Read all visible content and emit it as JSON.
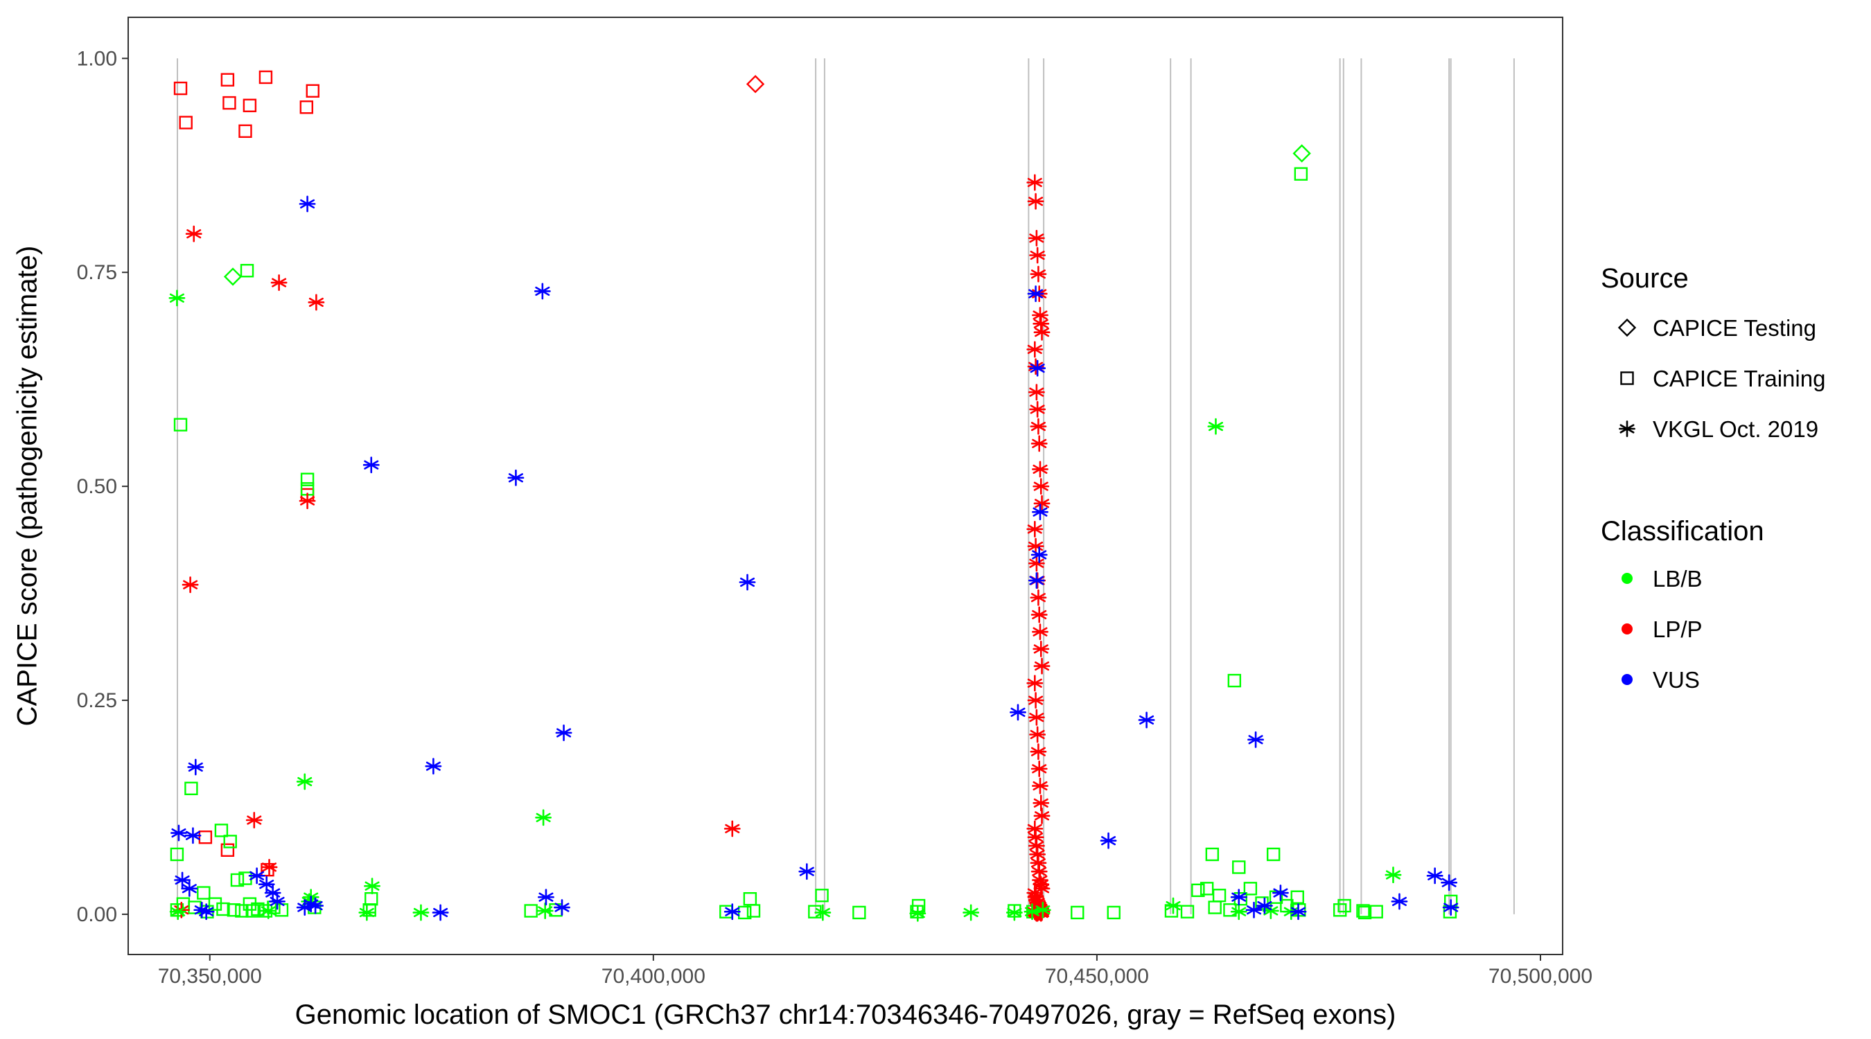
{
  "chart_data": {
    "type": "scatter",
    "title": "",
    "xlabel": "Genomic location of SMOC1 (GRCh37 chr14:70346346-70497026, gray = RefSeq exons)",
    "ylabel": "CAPICE score (pathogenicity estimate)",
    "xlim": [
      70340800,
      70502500
    ],
    "ylim": [
      -0.047,
      1.048
    ],
    "x_ticks": [
      70350000,
      70400000,
      70450000,
      70500000
    ],
    "x_tick_labels": [
      "70,350,000",
      "70,400,000",
      "70,450,000",
      "70,500,000"
    ],
    "y_ticks": [
      0,
      0.25,
      0.5,
      0.75,
      1.0
    ],
    "y_tick_labels": [
      "0.00",
      "0.25",
      "0.50",
      "0.75",
      "1.00"
    ],
    "grid": false,
    "exon_lines": [
      70346346,
      70418300,
      70419300,
      70442300,
      70444000,
      70458300,
      70460600,
      70477400,
      70477800,
      70479800,
      70489700,
      70489900,
      70497026
    ],
    "legend_source": {
      "title": "Source",
      "entries": [
        {
          "shape": "diamond",
          "label": "CAPICE Testing"
        },
        {
          "shape": "square",
          "label": "CAPICE Training"
        },
        {
          "shape": "asterisk",
          "label": "VKGL Oct. 2019"
        }
      ]
    },
    "legend_class": {
      "title": "Classification",
      "entries": [
        {
          "label": "LB/B",
          "color": "#00ff00"
        },
        {
          "label": "LP/P",
          "color": "#ff0000"
        },
        {
          "label": "VUS",
          "color": "#0000ff"
        }
      ]
    },
    "legend_position": "right",
    "series": [
      {
        "source": "CAPICE Testing",
        "classification": "LP/P",
        "x": [
          70411500
        ],
        "y": [
          0.97
        ]
      },
      {
        "source": "CAPICE Testing",
        "classification": "LB/B",
        "x": [
          70352600,
          70473100
        ],
        "y": [
          0.745,
          0.889
        ]
      },
      {
        "source": "CAPICE Training",
        "classification": "LP/P",
        "x": [
          70346700,
          70347300,
          70352000,
          70352200,
          70354000,
          70354500,
          70356300,
          70360900,
          70361600,
          70349500,
          70352000,
          70356500,
          70361000
        ],
        "y": [
          0.965,
          0.925,
          0.975,
          0.948,
          0.915,
          0.945,
          0.978,
          0.943,
          0.962,
          0.09,
          0.075,
          0.052,
          0.49
        ]
      },
      {
        "source": "CAPICE Training",
        "classification": "LB/B",
        "x": [
          70354200,
          70346700,
          70346300,
          70347900,
          70351300,
          70352300,
          70353100,
          70354000,
          70361000,
          70361000,
          70349300,
          70346300,
          70347000,
          70348300,
          70349700,
          70350600,
          70351500,
          70352700,
          70353600,
          70354500,
          70355400,
          70356300,
          70357200,
          70358100,
          70361800,
          70368000,
          70368200,
          70386200,
          70389000,
          70408200,
          70410300,
          70410900,
          70411300,
          70418200,
          70419000,
          70423200,
          70429700,
          70429900,
          70440700,
          70442800,
          70447800,
          70451900,
          70458400,
          70460200,
          70461400,
          70462400,
          70463300,
          70463800,
          70465000,
          70466200,
          70467300,
          70468600,
          70470200,
          70471400,
          70472600,
          70465500,
          70466000,
          70463000,
          70469900,
          70473000,
          70477400,
          70477900,
          70480200,
          70489800,
          70489900,
          70472800,
          70481500,
          70480000,
          70354800
        ],
        "y": [
          0.752,
          0.572,
          0.07,
          0.147,
          0.098,
          0.085,
          0.04,
          0.042,
          0.508,
          0.497,
          0.025,
          0.005,
          0.012,
          0.008,
          0.003,
          0.012,
          0.006,
          0.005,
          0.004,
          0.012,
          0.006,
          0.004,
          0.008,
          0.005,
          0.008,
          0.005,
          0.018,
          0.004,
          0.005,
          0.003,
          0.002,
          0.018,
          0.004,
          0.003,
          0.022,
          0.002,
          0.003,
          0.01,
          0.004,
          0.003,
          0.002,
          0.002,
          0.004,
          0.003,
          0.028,
          0.03,
          0.008,
          0.022,
          0.005,
          0.018,
          0.03,
          0.013,
          0.02,
          0.01,
          0.02,
          0.273,
          0.055,
          0.07,
          0.07,
          0.865,
          0.005,
          0.01,
          0.002,
          0.003,
          0.015,
          0.005,
          0.003,
          0.004,
          0.004
        ]
      },
      {
        "source": "VKGL Oct. 2019",
        "classification": "LP/P",
        "x": [
          70348200,
          70357800,
          70362000,
          70361000,
          70347800,
          70355000,
          70356700,
          70408900,
          70346800,
          70443000,
          70443100,
          70443200,
          70443300,
          70443400,
          70443500,
          70443600,
          70443700,
          70443800,
          70443000,
          70443100,
          70443200,
          70443300,
          70443400,
          70443500,
          70443600,
          70443700,
          70443800,
          70443000,
          70443100,
          70443200,
          70443300,
          70443400,
          70443500,
          70443600,
          70443700,
          70443800,
          70443000,
          70443100,
          70443200,
          70443300,
          70443400,
          70443500,
          70443600,
          70443700,
          70443800,
          70443000,
          70443100,
          70443200,
          70443300,
          70443400,
          70443500,
          70443600,
          70443700,
          70443800,
          70443000,
          70443100,
          70443200,
          70443300,
          70443400,
          70443500,
          70443600,
          70443700,
          70443800,
          70443000,
          70443100,
          70443200,
          70443300,
          70443400,
          70443500,
          70443600,
          70443700,
          70443800
        ],
        "y": [
          0.795,
          0.738,
          0.715,
          0.483,
          0.385,
          0.11,
          0.055,
          0.1,
          0.005,
          0.855,
          0.833,
          0.79,
          0.77,
          0.748,
          0.725,
          0.7,
          0.69,
          0.68,
          0.66,
          0.64,
          0.61,
          0.59,
          0.57,
          0.55,
          0.52,
          0.5,
          0.48,
          0.45,
          0.43,
          0.41,
          0.39,
          0.37,
          0.35,
          0.33,
          0.31,
          0.29,
          0.27,
          0.25,
          0.23,
          0.21,
          0.19,
          0.17,
          0.15,
          0.13,
          0.115,
          0.1,
          0.09,
          0.08,
          0.07,
          0.06,
          0.05,
          0.04,
          0.035,
          0.03,
          0.025,
          0.02,
          0.017,
          0.014,
          0.011,
          0.009,
          0.007,
          0.005,
          0.004,
          0.003,
          0.002,
          0.001,
          0.001,
          0.002,
          0.003,
          0.002,
          0.001,
          0.002
        ]
      },
      {
        "source": "VKGL Oct. 2019",
        "classification": "LB/B",
        "x": [
          70346300,
          70360700,
          70361200,
          70368300,
          70387600,
          70373800,
          70367700,
          70361400,
          70463400,
          70483400,
          70458600,
          70346400,
          70356600,
          70419100,
          70429800,
          70435800,
          70440700,
          70442700,
          70443900,
          70387800,
          70466000,
          70469600,
          70471900
        ],
        "y": [
          0.72,
          0.155,
          0.015,
          0.033,
          0.113,
          0.002,
          0.002,
          0.02,
          0.57,
          0.046,
          0.01,
          0.003,
          0.004,
          0.002,
          0.001,
          0.002,
          0.002,
          0.003,
          0.005,
          0.004,
          0.003,
          0.004,
          0.003
        ]
      },
      {
        "source": "VKGL Oct. 2019",
        "classification": "VUS",
        "x": [
          70361000,
          70387500,
          70368200,
          70384500,
          70410600,
          70389900,
          70375200,
          70348400,
          70348100,
          70346500,
          70346900,
          70347700,
          70349100,
          70349600,
          70355300,
          70356400,
          70357100,
          70357600,
          70360700,
          70361400,
          70361900,
          70387900,
          70389700,
          70376000,
          70408900,
          70417300,
          70441100,
          70443100,
          70443300,
          70443500,
          70455600,
          70451300,
          70467900,
          70466000,
          70467700,
          70468900,
          70470700,
          70472700,
          70484100,
          70488100,
          70489700,
          70489900,
          70443600,
          70443200
        ],
        "y": [
          0.83,
          0.728,
          0.525,
          0.51,
          0.388,
          0.212,
          0.173,
          0.172,
          0.092,
          0.095,
          0.04,
          0.03,
          0.005,
          0.003,
          0.045,
          0.035,
          0.025,
          0.015,
          0.008,
          0.012,
          0.01,
          0.02,
          0.008,
          0.002,
          0.003,
          0.05,
          0.236,
          0.725,
          0.638,
          0.42,
          0.227,
          0.086,
          0.204,
          0.02,
          0.005,
          0.01,
          0.025,
          0.003,
          0.015,
          0.045,
          0.037,
          0.008,
          0.47,
          0.39
        ]
      }
    ]
  }
}
